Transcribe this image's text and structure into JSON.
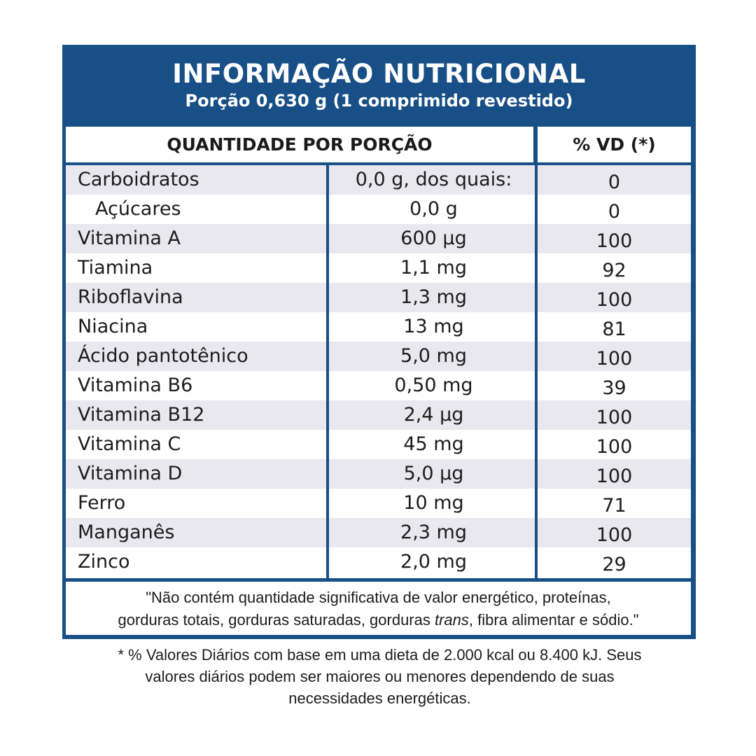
{
  "header": {
    "title": "INFORMAÇÃO NUTRICIONAL",
    "subtitle": "Porção 0,630 g (1 comprimido revestido)"
  },
  "columns": {
    "quantity": "QUANTIDADE POR PORÇÃO",
    "vd": "% VD (*)"
  },
  "rows": [
    {
      "name": "Carboidratos",
      "amount": "0,0 g, dos quais:",
      "vd": "0"
    },
    {
      "name": "Açúcares",
      "amount": "0,0 g",
      "vd": "0"
    },
    {
      "name": "Vitamina A",
      "amount": "600 µg",
      "vd": "100"
    },
    {
      "name": "Tiamina",
      "amount": "1,1 mg",
      "vd": "92"
    },
    {
      "name": "Riboflavina",
      "amount": "1,3 mg",
      "vd": "100"
    },
    {
      "name": "Niacina",
      "amount": "13 mg",
      "vd": "81"
    },
    {
      "name": "Ácido pantotênico",
      "amount": "5,0 mg",
      "vd": "100"
    },
    {
      "name": "Vitamina B6",
      "amount": "0,50 mg",
      "vd": "39"
    },
    {
      "name": "Vitamina B12",
      "amount": "2,4 µg",
      "vd": "100"
    },
    {
      "name": "Vitamina C",
      "amount": "45 mg",
      "vd": "100"
    },
    {
      "name": "Vitamina D",
      "amount": "5,0 µg",
      "vd": "100"
    },
    {
      "name": "Ferro",
      "amount": "10 mg",
      "vd": "71"
    },
    {
      "name": "Manganês",
      "amount": "2,3 mg",
      "vd": "100"
    },
    {
      "name": "Zinco",
      "amount": "2,0 mg",
      "vd": "29"
    }
  ],
  "note": {
    "part1": "\"Não contém quantidade significativa de valor energético, proteínas,",
    "part2": "gorduras totais, gorduras saturadas, gorduras ",
    "part3_italic": "trans",
    "part4": ", fibra alimentar e sódio.\""
  },
  "footnote": {
    "line1": "* % Valores Diários com base em uma dieta de 2.000 kcal ou 8.400 kJ. Seus",
    "line2": "valores diários podem ser maiores ou menores dependendo de suas",
    "line3": "necessidades energéticas."
  },
  "colors": {
    "brand_blue": "#174f86",
    "row_shade": "#e8e8ee"
  }
}
